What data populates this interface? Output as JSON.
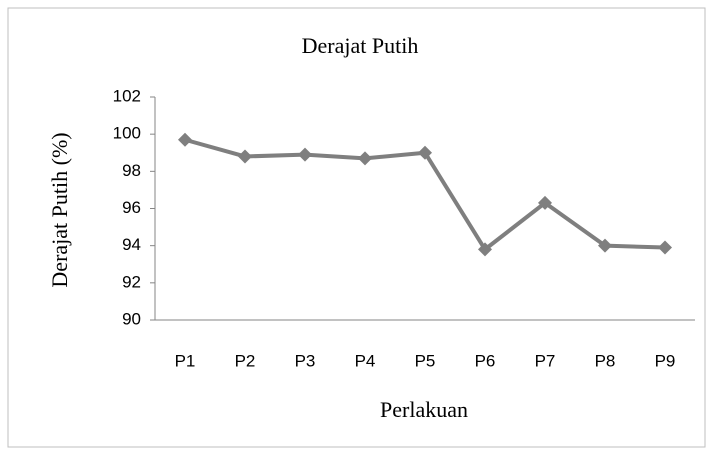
{
  "chart_data": {
    "type": "line",
    "title": "Derajat Putih",
    "x_label": "Perlakuan",
    "y_label": "Derajat Putih (%)",
    "categories": [
      "P1",
      "P2",
      "P3",
      "P4",
      "P5",
      "P6",
      "P7",
      "P8",
      "P9"
    ],
    "series": [
      {
        "name": "Derajat Putih",
        "color": "#7f7f7f",
        "values": [
          99.7,
          98.8,
          98.9,
          98.7,
          99.0,
          93.8,
          96.3,
          94.0,
          93.9
        ]
      }
    ],
    "ylim": [
      90,
      102
    ],
    "yticks": [
      90,
      92,
      94,
      96,
      98,
      100,
      102
    ],
    "grid": false,
    "legend": false
  }
}
